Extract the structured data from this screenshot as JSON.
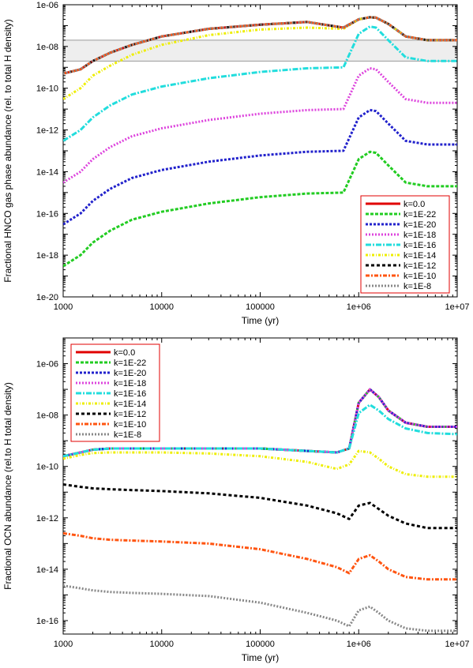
{
  "legend_keys": [
    "k=0.0",
    "k=1E-22",
    "k=1E-20",
    "k=1E-18",
    "k=1E-16",
    "k=1E-14",
    "k=1E-12",
    "k=1E-10",
    "k=1E-8"
  ],
  "colors": {
    "k=0.0": "#e00000",
    "k=1E-22": "#22cc22",
    "k=1E-20": "#2222cc",
    "k=1E-18": "#dd44dd",
    "k=1E-16": "#22dddd",
    "k=1E-14": "#eeee00",
    "k=1E-12": "#000000",
    "k=1E-10": "#ff5511",
    "k=1E-8": "#888888"
  },
  "chart_data": [
    {
      "type": "line",
      "xlabel": "Time (yr)",
      "ylabel": "Fractional HNCO gas phase abundance (rel. to total H density)",
      "xscale": "log",
      "yscale": "log",
      "xlim": [
        1000,
        10000000
      ],
      "ylim": [
        1e-20,
        1e-06
      ],
      "x_ticks": [
        "1000",
        "10000",
        "100000",
        "1e+06",
        "1e+07"
      ],
      "y_ticks": [
        "1e-20",
        "1e-18",
        "1e-16",
        "1e-14",
        "1e-12",
        "1e-10",
        "1e-08",
        "1e-06"
      ],
      "shaded_band": [
        2e-09,
        2e-08
      ],
      "legend_position": "bottom-right",
      "x": [
        1000,
        1500,
        2000,
        3000,
        5000,
        10000,
        30000,
        100000,
        300000,
        700000,
        1000000,
        1300000,
        1500000,
        2000000,
        3000000,
        5000000,
        10000000
      ],
      "series": [
        {
          "name": "k=0.0",
          "values": [
            5e-10,
            8e-10,
            2e-09,
            5e-09,
            1.2e-08,
            3e-08,
            7e-08,
            1.1e-07,
            1.5e-07,
            8e-08,
            2e-07,
            2.5e-07,
            2.4e-07,
            1.2e-07,
            3e-08,
            2e-08,
            2e-08
          ]
        },
        {
          "name": "k=1E-22",
          "values": [
            3e-19,
            1e-18,
            4e-18,
            1.5e-17,
            5e-17,
            1.2e-16,
            3e-16,
            6e-16,
            9e-16,
            1e-15,
            4e-14,
            9e-14,
            8e-14,
            2e-14,
            3e-15,
            2e-15,
            2e-15
          ]
        },
        {
          "name": "k=1E-20",
          "values": [
            3e-17,
            1e-16,
            4e-16,
            1.5e-15,
            5e-15,
            1.2e-14,
            3e-14,
            6e-14,
            9e-14,
            1e-13,
            4e-12,
            9e-12,
            8e-12,
            2e-12,
            3e-13,
            2e-13,
            2e-13
          ]
        },
        {
          "name": "k=1E-18",
          "values": [
            3e-15,
            1e-14,
            4e-14,
            1.5e-13,
            5e-13,
            1.2e-12,
            3e-12,
            6e-12,
            9e-12,
            1e-11,
            4e-10,
            9e-10,
            8e-10,
            2e-10,
            3e-11,
            2e-11,
            2e-11
          ]
        },
        {
          "name": "k=1E-16",
          "values": [
            3e-13,
            1e-12,
            4e-12,
            1.5e-11,
            5e-11,
            1.2e-10,
            3e-10,
            6e-10,
            9e-10,
            1e-09,
            4e-08,
            9e-08,
            8e-08,
            2e-08,
            3e-09,
            2e-09,
            2e-09
          ]
        },
        {
          "name": "k=1E-14",
          "values": [
            3e-11,
            1e-10,
            4e-10,
            1.2e-09,
            4e-09,
            1.2e-08,
            3.5e-08,
            6.5e-08,
            8e-08,
            7e-08,
            2e-07,
            2.5e-07,
            2.4e-07,
            1.2e-07,
            3e-08,
            2e-08,
            2e-08
          ]
        },
        {
          "name": "k=1E-12",
          "values": [
            5e-10,
            8e-10,
            2e-09,
            5e-09,
            1.2e-08,
            3e-08,
            7e-08,
            1.1e-07,
            1.5e-07,
            8e-08,
            2e-07,
            2.5e-07,
            2.4e-07,
            1.2e-07,
            3e-08,
            2e-08,
            2e-08
          ]
        },
        {
          "name": "k=1E-10",
          "values": [
            5e-10,
            8e-10,
            2e-09,
            5e-09,
            1.2e-08,
            3e-08,
            7e-08,
            1.1e-07,
            1.5e-07,
            8e-08,
            2e-07,
            2.5e-07,
            2.4e-07,
            1.2e-07,
            3e-08,
            2e-08,
            2e-08
          ]
        },
        {
          "name": "k=1E-8",
          "values": [
            5e-10,
            8e-10,
            2e-09,
            5e-09,
            1.2e-08,
            3e-08,
            7e-08,
            1.1e-07,
            1.5e-07,
            8e-08,
            2e-07,
            2.5e-07,
            2.4e-07,
            1.2e-07,
            3e-08,
            2e-08,
            2e-08
          ]
        }
      ]
    },
    {
      "type": "line",
      "xlabel": "Time (yr)",
      "ylabel": "Fractional OCN abundance (rel.to H total density)",
      "xscale": "log",
      "yscale": "log",
      "xlim": [
        1000,
        10000000
      ],
      "ylim": [
        3e-17,
        1e-05
      ],
      "x_ticks": [
        "1000",
        "10000",
        "100000",
        "1e+06",
        "1e+07"
      ],
      "y_ticks": [
        "1e-16",
        "1e-14",
        "1e-12",
        "1e-10",
        "1e-08",
        "1e-06"
      ],
      "legend_position": "top-left",
      "x": [
        1000,
        1500,
        2000,
        3000,
        5000,
        10000,
        30000,
        100000,
        300000,
        600000,
        800000,
        1000000,
        1300000,
        1600000,
        2000000,
        3000000,
        5000000,
        10000000
      ],
      "series": [
        {
          "name": "k=0.0",
          "values": [
            2.5e-10,
            3.5e-10,
            4.5e-10,
            5e-10,
            5e-10,
            5e-10,
            5e-10,
            5e-10,
            4e-10,
            3.5e-10,
            5e-10,
            3e-08,
            1e-07,
            5e-08,
            1.5e-08,
            5e-09,
            3.5e-09,
            3.5e-09
          ]
        },
        {
          "name": "k=1E-22",
          "values": [
            2.5e-10,
            3.5e-10,
            4.5e-10,
            5e-10,
            5e-10,
            5e-10,
            5e-10,
            5e-10,
            4e-10,
            3.5e-10,
            5e-10,
            3e-08,
            1e-07,
            5e-08,
            1.5e-08,
            5e-09,
            3.5e-09,
            3.5e-09
          ]
        },
        {
          "name": "k=1E-20",
          "values": [
            2.5e-10,
            3.5e-10,
            4.5e-10,
            5e-10,
            5e-10,
            5e-10,
            5e-10,
            5e-10,
            4e-10,
            3.5e-10,
            5e-10,
            3e-08,
            1e-07,
            5e-08,
            1.5e-08,
            5e-09,
            3.5e-09,
            3.5e-09
          ]
        },
        {
          "name": "k=1E-18",
          "values": [
            2.5e-10,
            3.5e-10,
            4.5e-10,
            5e-10,
            5e-10,
            5e-10,
            5e-10,
            5e-10,
            4e-10,
            3.5e-10,
            5e-10,
            3e-08,
            1e-07,
            5e-08,
            1.5e-08,
            5e-09,
            3.5e-09,
            3.5e-09
          ]
        },
        {
          "name": "k=1E-16",
          "values": [
            2.5e-10,
            3.5e-10,
            4.5e-10,
            5e-10,
            5e-10,
            5e-10,
            5e-10,
            5e-10,
            4e-10,
            3.5e-10,
            5e-10,
            1.2e-08,
            2.5e-08,
            1.5e-08,
            7e-09,
            3e-09,
            2e-09,
            1.8e-09
          ]
        },
        {
          "name": "k=1E-14",
          "values": [
            2e-10,
            2.8e-10,
            3.3e-10,
            3.5e-10,
            3.5e-10,
            3.5e-10,
            3.2e-10,
            2.5e-10,
            1.5e-10,
            8e-11,
            1.2e-10,
            4e-10,
            3.5e-10,
            2e-10,
            1e-10,
            5e-11,
            4e-11,
            4e-11
          ]
        },
        {
          "name": "k=1E-12",
          "values": [
            2e-11,
            1.6e-11,
            1.4e-11,
            1.3e-11,
            1.2e-11,
            1.1e-11,
            9e-12,
            6e-12,
            3e-12,
            1.5e-12,
            9e-13,
            3e-12,
            3.8e-12,
            2.2e-12,
            1.2e-12,
            6e-13,
            4e-13,
            4e-13
          ]
        },
        {
          "name": "k=1E-10",
          "values": [
            2.5e-13,
            2e-13,
            1.6e-13,
            1.4e-13,
            1.3e-13,
            1.2e-13,
            1e-13,
            6e-14,
            2.5e-14,
            1.2e-14,
            7e-15,
            2.5e-14,
            3.5e-14,
            2e-14,
            1e-14,
            5e-15,
            4e-15,
            4e-15
          ]
        },
        {
          "name": "k=1E-8",
          "values": [
            2.3e-15,
            1.8e-15,
            1.5e-15,
            1.3e-15,
            1.2e-15,
            1.1e-15,
            9e-16,
            5e-16,
            2e-16,
            1e-16,
            6e-17,
            2.5e-16,
            3.5e-16,
            2e-16,
            1e-16,
            5e-17,
            4e-17,
            4e-17
          ]
        }
      ]
    }
  ]
}
